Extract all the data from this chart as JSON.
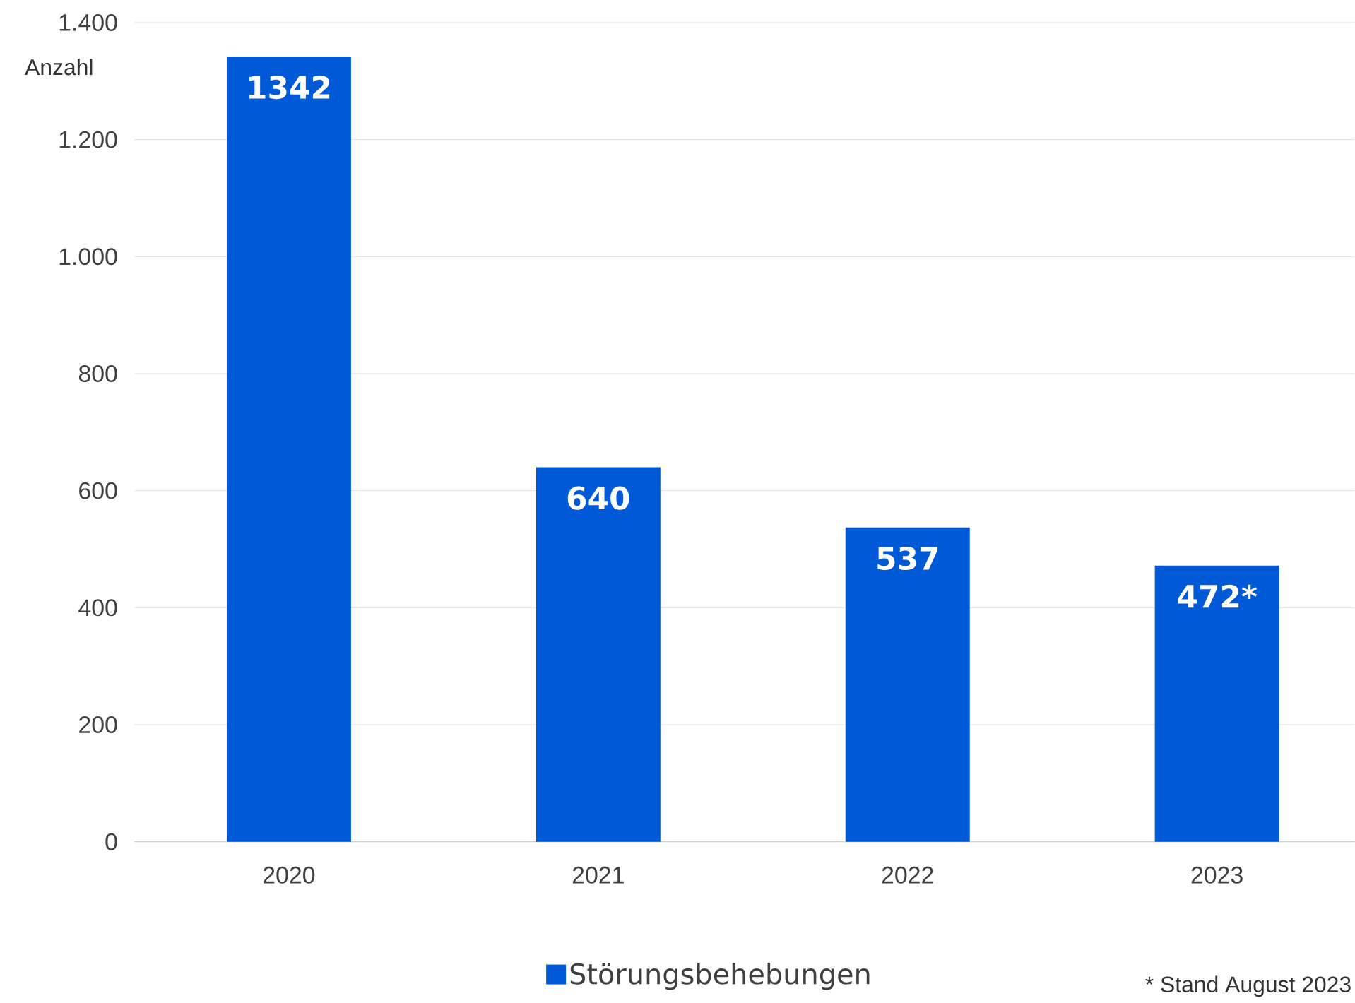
{
  "chart_data": {
    "type": "bar",
    "ylabel": "Anzahl",
    "categories": [
      "2020",
      "2021",
      "2022",
      "2023"
    ],
    "series": [
      {
        "name": "Störungsbehebungen",
        "color": "#0059d6",
        "values": [
          1342,
          640,
          537,
          472
        ],
        "value_labels": [
          "1342",
          "640",
          "537",
          "472*"
        ]
      }
    ],
    "ylim": [
      0,
      1400
    ],
    "yticks": [
      0,
      200,
      400,
      600,
      800,
      {
        "value": 1000,
        "label": "1.000"
      },
      {
        "value": 1200,
        "label": "1.200"
      },
      {
        "value": 1400,
        "label": "1.400"
      }
    ],
    "grid": "y",
    "legend": "bottom",
    "annotations": [
      "* Stand August 2023"
    ]
  }
}
